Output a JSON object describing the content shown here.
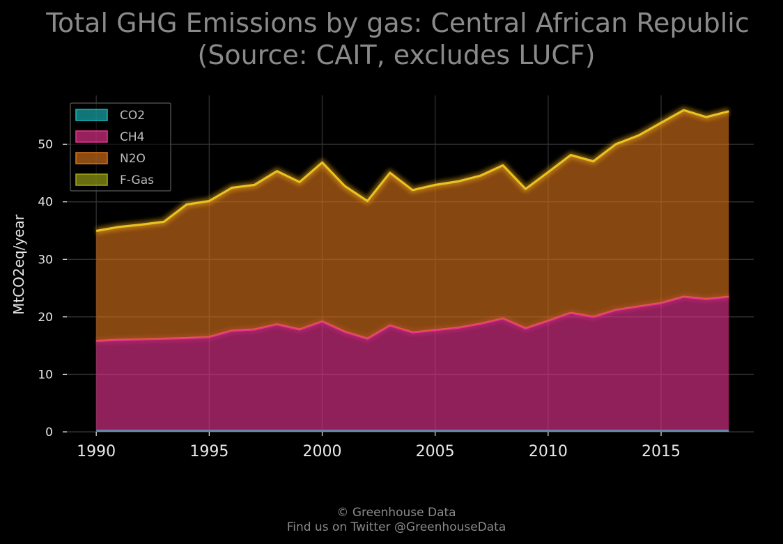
{
  "chart_data": {
    "type": "area",
    "stacked": true,
    "title": "Total GHG Emissions by gas: Central African Republic",
    "subtitle": "(Source: CAIT, excludes LUCF)",
    "xlabel": "",
    "ylabel": "MtCO2eq/year",
    "x": [
      1990,
      1991,
      1992,
      1993,
      1994,
      1995,
      1996,
      1997,
      1998,
      1999,
      2000,
      2001,
      2002,
      2003,
      2004,
      2005,
      2006,
      2007,
      2008,
      2009,
      2010,
      2011,
      2012,
      2013,
      2014,
      2015,
      2016,
      2017,
      2018
    ],
    "xlim": [
      1988.7,
      2019.1
    ],
    "ylim": [
      0,
      58.5
    ],
    "x_ticks": [
      1990,
      1995,
      2000,
      2005,
      2010,
      2015
    ],
    "y_ticks": [
      0,
      10,
      20,
      30,
      40,
      50
    ],
    "grid": true,
    "legend_position": "top-left",
    "series": [
      {
        "name": "CO2",
        "color": "#1ab5b8",
        "values": [
          0.2,
          0.2,
          0.2,
          0.2,
          0.2,
          0.2,
          0.2,
          0.2,
          0.2,
          0.2,
          0.2,
          0.2,
          0.2,
          0.2,
          0.2,
          0.2,
          0.2,
          0.2,
          0.2,
          0.2,
          0.2,
          0.2,
          0.2,
          0.2,
          0.2,
          0.2,
          0.2,
          0.2,
          0.2
        ]
      },
      {
        "name": "CH4",
        "color": "#e8338f",
        "values": [
          15.6,
          15.8,
          15.9,
          16.0,
          16.1,
          16.3,
          17.4,
          17.6,
          18.5,
          17.6,
          19.0,
          17.2,
          16.0,
          18.3,
          17.1,
          17.5,
          17.9,
          18.6,
          19.5,
          17.8,
          19.1,
          20.5,
          19.8,
          21.0,
          21.6,
          22.2,
          23.3,
          22.9,
          23.3
        ]
      },
      {
        "name": "N2O",
        "color": "#d9731a",
        "values": [
          19.1,
          19.6,
          19.9,
          20.3,
          23.2,
          23.6,
          24.8,
          25.1,
          26.6,
          25.6,
          27.6,
          25.3,
          23.9,
          26.5,
          24.7,
          25.2,
          25.4,
          25.7,
          26.6,
          24.2,
          25.8,
          27.4,
          27.0,
          28.8,
          29.7,
          31.3,
          32.4,
          31.6,
          32.2
        ]
      },
      {
        "name": "F-Gas",
        "color": "#9fa817",
        "values": [
          0.05,
          0.05,
          0.05,
          0.05,
          0.05,
          0.05,
          0.05,
          0.05,
          0.05,
          0.05,
          0.05,
          0.05,
          0.05,
          0.05,
          0.05,
          0.05,
          0.05,
          0.05,
          0.05,
          0.05,
          0.05,
          0.05,
          0.05,
          0.05,
          0.05,
          0.05,
          0.05,
          0.05,
          0.05
        ]
      }
    ]
  },
  "credits": {
    "line1": "© Greenhouse Data",
    "line2": "Find us on Twitter @GreenhouseData"
  }
}
